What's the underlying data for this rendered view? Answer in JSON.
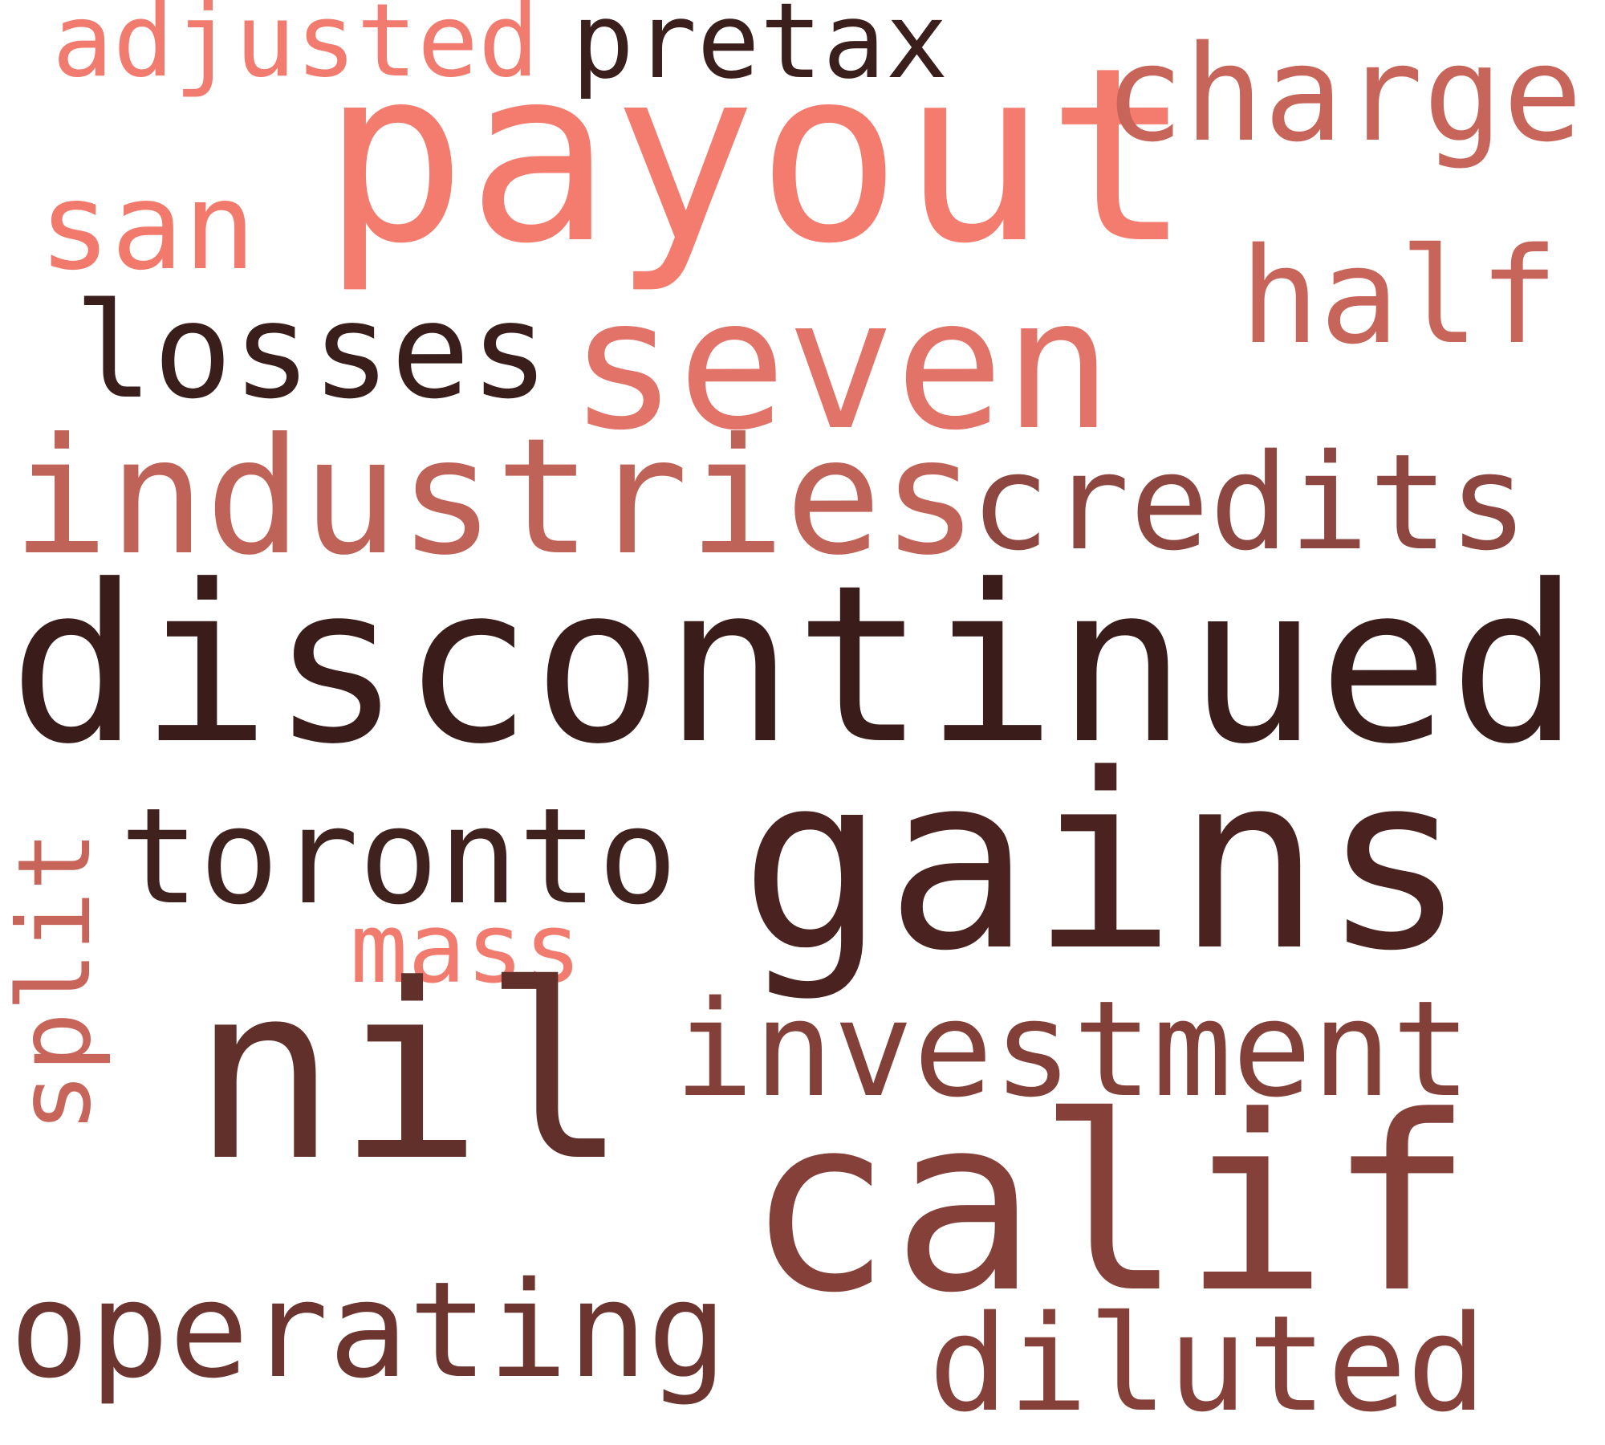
{
  "words": [
    {
      "text": "adjusted",
      "color": "#F07B6E"
    },
    {
      "text": "pretax",
      "color": "#3B1F1C"
    },
    {
      "text": "payout",
      "color": "#F47C6E"
    },
    {
      "text": "charge",
      "color": "#C8655A"
    },
    {
      "text": "san",
      "color": "#F27A6C"
    },
    {
      "text": "half",
      "color": "#C8655A"
    },
    {
      "text": "losses",
      "color": "#3A1E1B"
    },
    {
      "text": "seven",
      "color": "#E27368"
    },
    {
      "text": "industries",
      "color": "#BF6359"
    },
    {
      "text": "credits",
      "color": "#8E4640"
    },
    {
      "text": "discontinued",
      "color": "#3A1D1B"
    },
    {
      "text": "toronto",
      "color": "#3F211E"
    },
    {
      "text": "gains",
      "color": "#4A2320"
    },
    {
      "text": "mass",
      "color": "#F07B6E"
    },
    {
      "text": "split",
      "color": "#C8655A"
    },
    {
      "text": "nil",
      "color": "#62302B"
    },
    {
      "text": "investment",
      "color": "#824039"
    },
    {
      "text": "calif",
      "color": "#844039"
    },
    {
      "text": "operating",
      "color": "#6D3530"
    },
    {
      "text": "diluted",
      "color": "#844039"
    }
  ]
}
